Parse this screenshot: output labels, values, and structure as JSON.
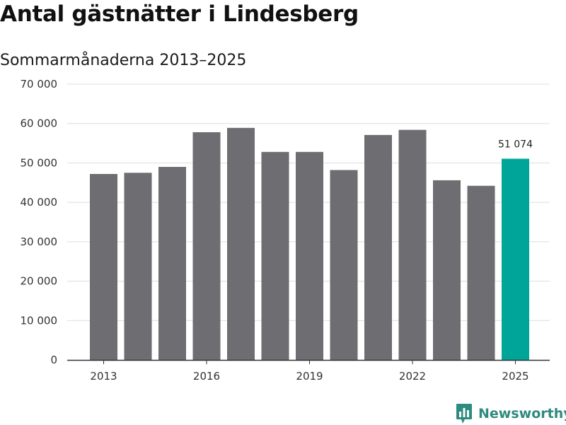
{
  "title": "Antal gästnätter i Lindesberg",
  "subtitle": "Sommarmånaderna 2013–2025",
  "brand": {
    "name": "Newsworthy",
    "icon": "newsworthy-logo-icon",
    "color": "#2e8b7f"
  },
  "colors": {
    "bar": "#6d6d72",
    "highlight": "#00a59a",
    "grid": "#dddddd",
    "axis": "#333333"
  },
  "chart_data": {
    "type": "bar",
    "title": "Antal gästnätter i Lindesberg",
    "subtitle": "Sommarmånaderna 2013–2025",
    "xlabel": "",
    "ylabel": "",
    "categories": [
      2013,
      2014,
      2015,
      2016,
      2017,
      2018,
      2019,
      2020,
      2021,
      2022,
      2023,
      2024,
      2025
    ],
    "values": [
      47200,
      47500,
      49000,
      57800,
      58900,
      52800,
      52800,
      48200,
      57100,
      58400,
      45600,
      44200,
      51074
    ],
    "highlight_index": 12,
    "data_labels": [
      {
        "category": 2025,
        "text": "51 074"
      }
    ],
    "x_tick_labels": [
      "2013",
      "2016",
      "2019",
      "2022",
      "2025"
    ],
    "y_tick_values": [
      0,
      10000,
      20000,
      30000,
      40000,
      50000,
      60000,
      70000
    ],
    "y_tick_labels": [
      "0",
      "10 000",
      "20 000",
      "30 000",
      "40 000",
      "50 000",
      "60 000",
      "70 000"
    ],
    "ylim": [
      0,
      70000
    ],
    "grid": "horizontal",
    "legend": "none"
  }
}
